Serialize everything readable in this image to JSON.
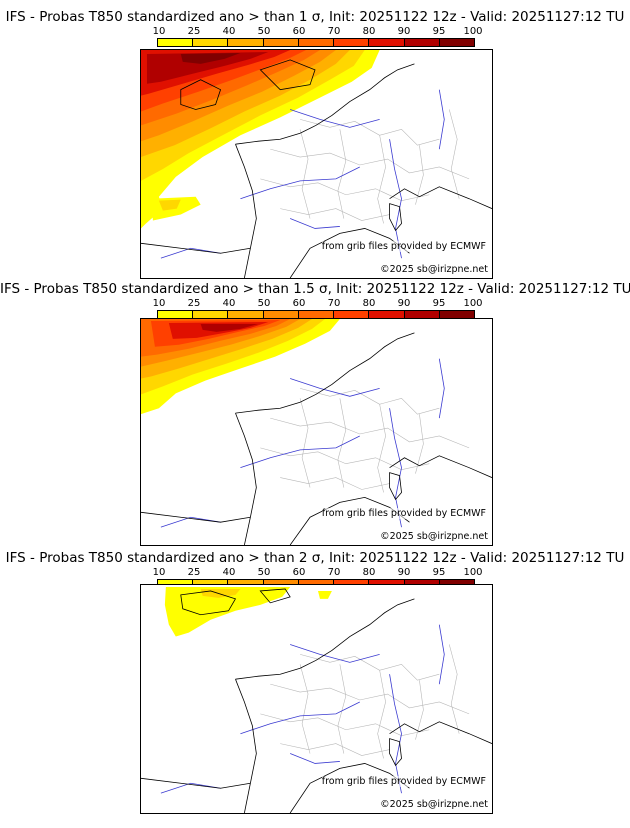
{
  "colorbar": {
    "ticks": [
      "10",
      "25",
      "40",
      "50",
      "60",
      "70",
      "80",
      "90",
      "95",
      "100"
    ],
    "colors": [
      "#ffff00",
      "#ffd700",
      "#ffb000",
      "#ff8c00",
      "#ff6a00",
      "#ff4000",
      "#e01000",
      "#b00000",
      "#800000",
      "#4a0000"
    ]
  },
  "panels": [
    {
      "title": "IFS - Probas T850  standardized ano > than 1 σ, Init: 20251122 12z - Valid: 20251127:12 TU",
      "sigma": "1",
      "credit_grib": "from grib files provided by ECMWF",
      "credit_copy": "©2025 sb@irizpne.net"
    },
    {
      "title": "IFS - Probas T850  standardized ano > than 1.5 σ, Init: 20251122 12z - Valid: 20251127:12 TU",
      "sigma": "1.5",
      "credit_grib": "from grib files provided by ECMWF",
      "credit_copy": "©2025 sb@irizpne.net"
    },
    {
      "title": "IFS - Probas T850  standardized ano > than 2 σ, Init: 20251122 12z - Valid: 20251127:12 TU",
      "sigma": "2",
      "credit_grib": "from grib files provided by ECMWF",
      "credit_copy": "©2025 sb@irizpne.net"
    }
  ]
}
